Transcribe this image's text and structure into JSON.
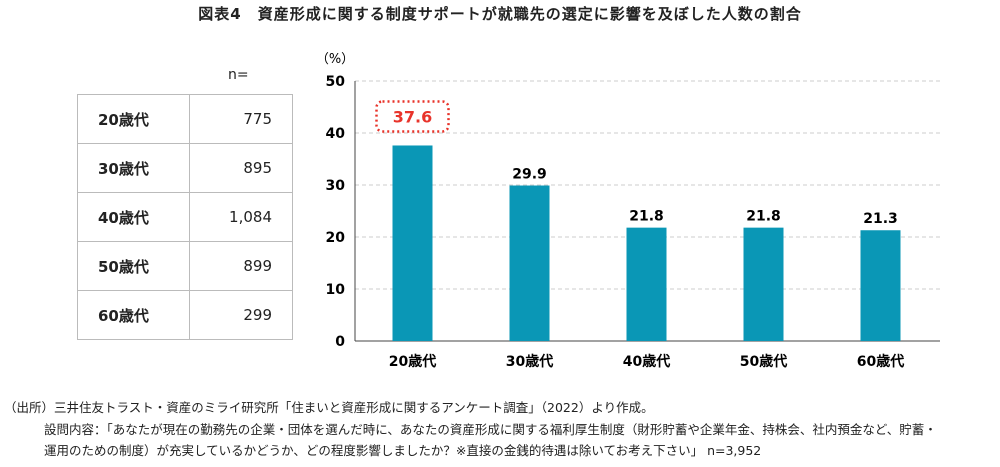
{
  "title": "図表4　資産形成に関する制度サポートが就職先の選定に影響を及ぼした人数の割合",
  "table": {
    "header": "n=",
    "rows": [
      {
        "label": "20歳代",
        "n": "775"
      },
      {
        "label": "30歳代",
        "n": "895"
      },
      {
        "label": "40歳代",
        "n": "1,084"
      },
      {
        "label": "50歳代",
        "n": "899"
      },
      {
        "label": "60歳代",
        "n": "299"
      }
    ]
  },
  "chart_data": {
    "type": "bar",
    "categories": [
      "20歳代",
      "30歳代",
      "40歳代",
      "50歳代",
      "60歳代"
    ],
    "values": [
      37.6,
      29.9,
      21.8,
      21.8,
      21.3
    ],
    "ylabel": "（%）",
    "ylim": [
      0,
      50
    ],
    "yticks": [
      0,
      10,
      20,
      30,
      40,
      50
    ],
    "grid": true,
    "highlight": "20歳代",
    "bar_color": "#0a97b6",
    "highlight_color": "#e8332a"
  },
  "notes": [
    "（出所）三井住友トラスト・資産のミライ研究所「住まいと資産形成に関するアンケート調査」（2022）より作成。",
    "設問内容：「あなたが現在の勤務先の企業・団体を選んだ時に、あなたの資産形成に関する福利厚生制度（財形貯蓄や企業年金、持株会、社内預金など、貯蓄・",
    "運用のための制度）が充実しているかどうか、どの程度影響しましたか？※直接の金銭的待遇は除いてお考え下さい」 n=3,952"
  ]
}
